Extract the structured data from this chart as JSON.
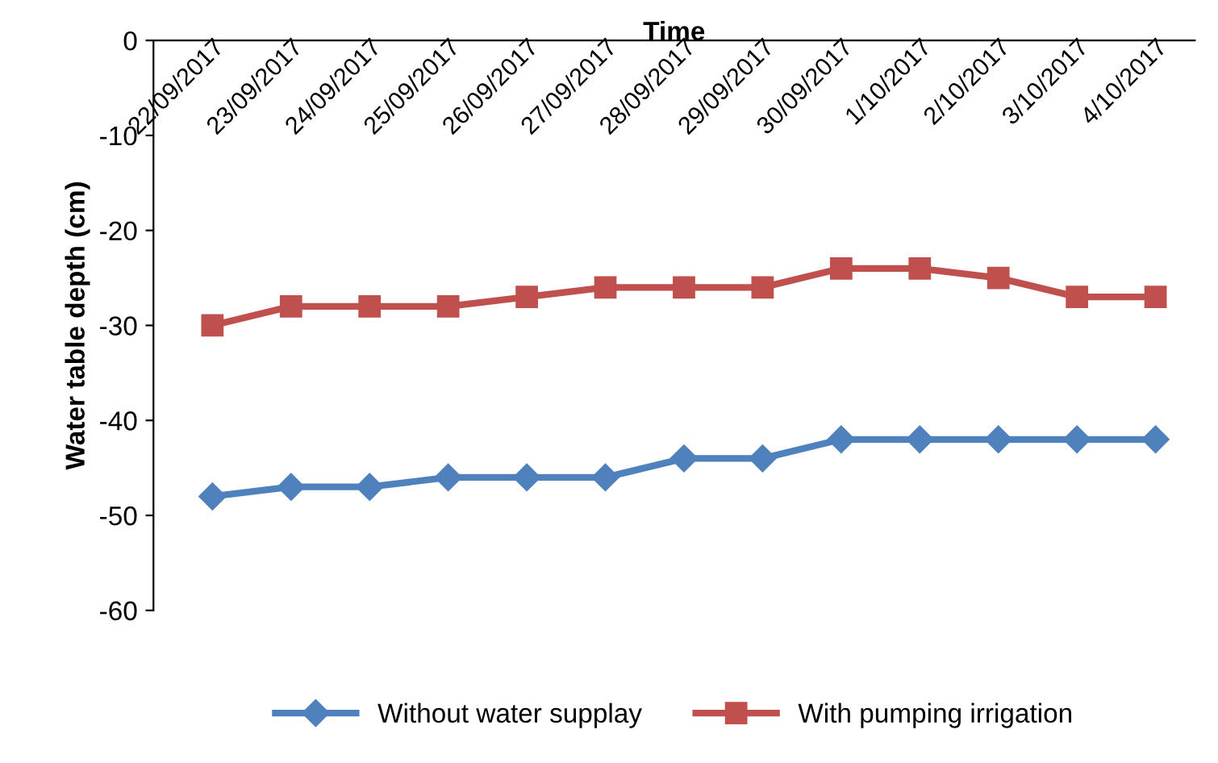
{
  "chart_data": {
    "type": "line",
    "xlabel": "Time",
    "ylabel": "Water table depth (cm)",
    "categories": [
      "22/09/2017",
      "23/09/2017",
      "24/09/2017",
      "25/09/2017",
      "26/09/2017",
      "27/09/2017",
      "28/09/2017",
      "29/09/2017",
      "30/09/2017",
      "1/10/2017",
      "2/10/2017",
      "3/10/2017",
      "4/10/2017"
    ],
    "series": [
      {
        "name": "Without water supplay",
        "color": "#4f81bd",
        "marker": "diamond",
        "values": [
          -48,
          -47,
          -47,
          -46,
          -46,
          -46,
          -44,
          -44,
          -42,
          -42,
          -42,
          -42,
          -42
        ]
      },
      {
        "name": "With pumping irrigation",
        "color": "#c0504d",
        "marker": "square",
        "values": [
          -30,
          -28,
          -28,
          -28,
          -27,
          -26,
          -26,
          -26,
          -24,
          -24,
          -25,
          -27,
          -27
        ]
      }
    ],
    "ylim": [
      -60,
      0
    ],
    "yticks": [
      -60,
      -50,
      -40,
      -30,
      -20,
      -10,
      0
    ],
    "grid": false,
    "legend": "bottom",
    "line_style": "solid"
  }
}
